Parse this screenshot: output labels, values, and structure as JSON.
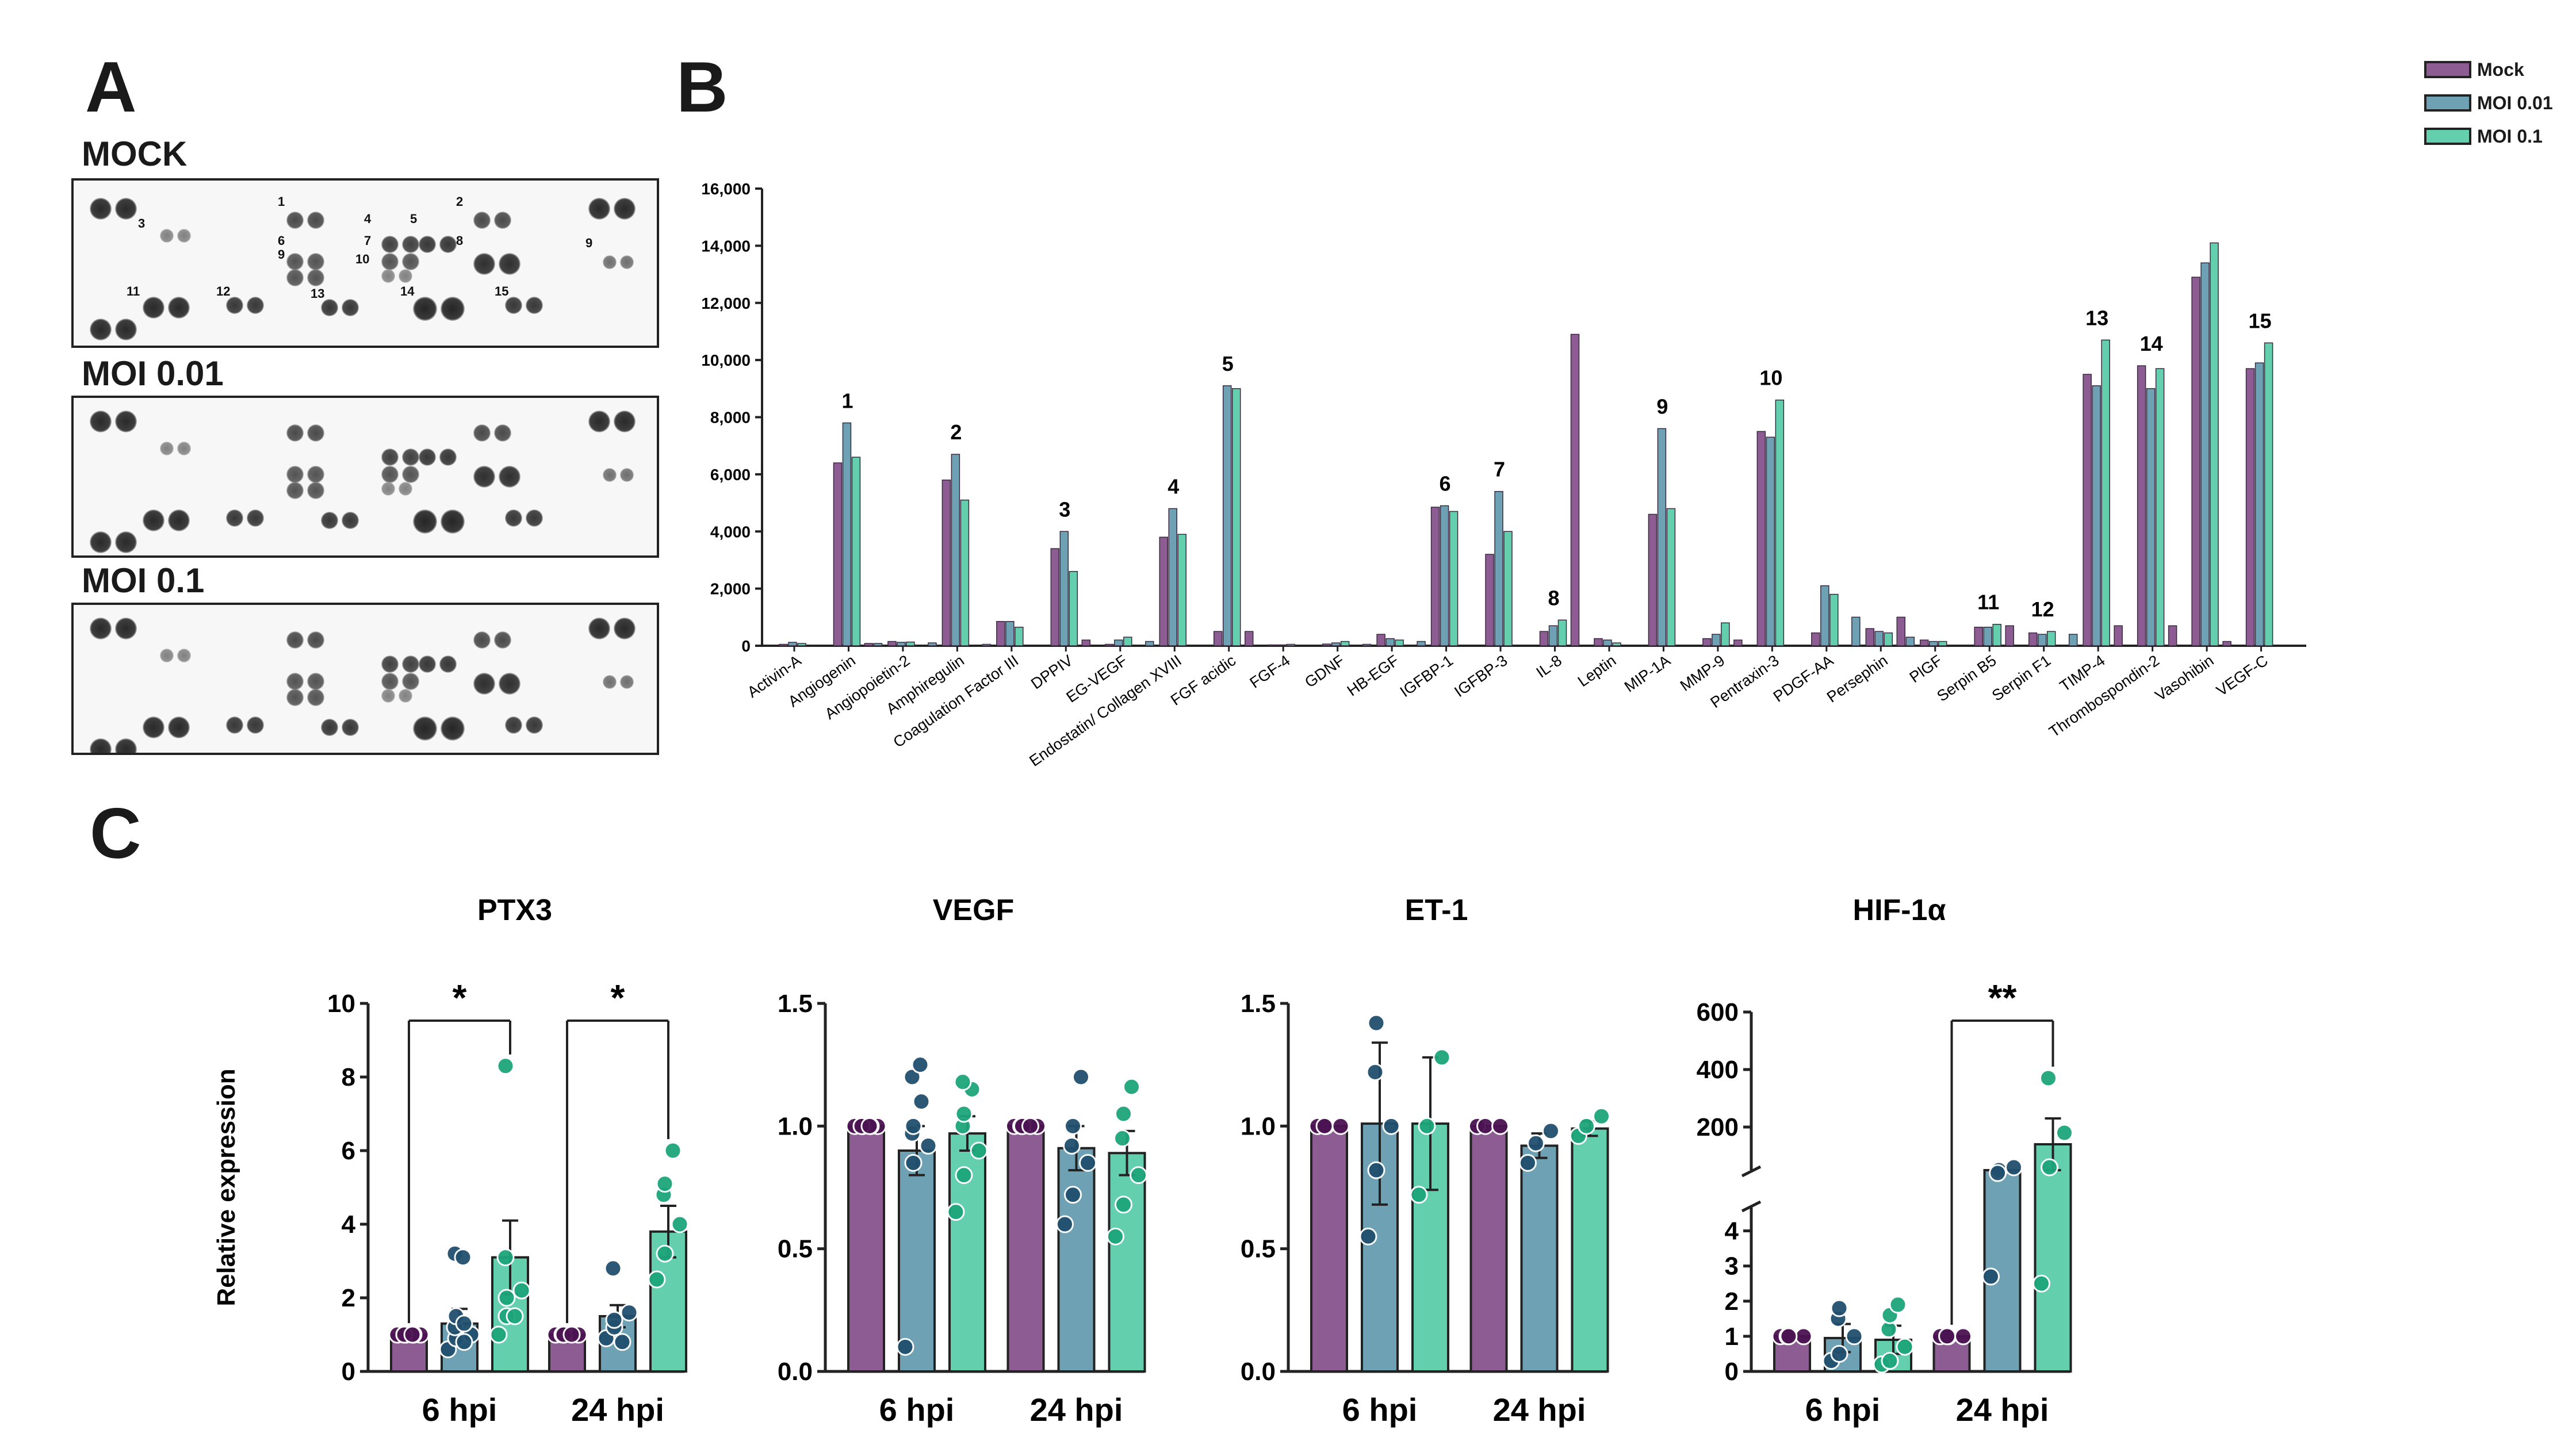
{
  "panels": {
    "A": "A",
    "B": "B",
    "C": "C"
  },
  "colors": {
    "mock": "#8c5c93",
    "moi001": "#6ea1b4",
    "moi01": "#63cfad",
    "dot_mock": "#4b1352",
    "dot_moi001": "#214f6e",
    "dot_moi01": "#1da57a"
  },
  "blots": [
    {
      "title": "MOCK",
      "labels": [
        "1",
        "2",
        "3",
        "4",
        "5",
        "6",
        "7",
        "8",
        "9",
        "10",
        "11",
        "12",
        "13",
        "14",
        "15",
        "9"
      ]
    },
    {
      "title": "MOI 0.01"
    },
    {
      "title": "MOI 0.1"
    }
  ],
  "chart_data": [
    {
      "type": "bar",
      "panel": "B",
      "categories": [
        "Activin-A",
        "Angiogenin",
        "Angiopoietin-2",
        "Amphiregulin",
        "Coagulation  Factor III",
        "DPPIV",
        "EG-VEGF",
        "Endostatin/ Collagen XVIII",
        "FGF acidic",
        "FGF-4",
        "GDNF",
        "HB-EGF",
        "IGFBP-1",
        "IGFBP-3",
        "IL-8",
        "Leptin",
        "MIP-1A",
        "MMP-9",
        "Pentraxin-3",
        "PDGF-AA",
        "Persephin",
        "PlGF",
        "Serpin B5",
        "Serpin F1",
        "TIMP-4",
        "Thrombospondin-2",
        "Vasohibin",
        "VEGF-C"
      ],
      "series": [
        {
          "name": "Mock",
          "values": [
            50,
            6400,
            150,
            5800,
            850,
            3400,
            50,
            3800,
            500,
            30,
            60,
            400,
            4850,
            3200,
            500,
            250,
            4600,
            250,
            7500,
            450,
            600,
            200,
            650,
            450,
            9500,
            9800,
            12900,
            9700
          ]
        },
        {
          "name": "MOI 0.01",
          "values": [
            120,
            7800,
            120,
            6700,
            850,
            4000,
            200,
            4800,
            9100,
            30,
            100,
            250,
            4900,
            5400,
            700,
            200,
            7600,
            400,
            7300,
            2100,
            500,
            150,
            650,
            400,
            9100,
            9000,
            13400,
            9900
          ]
        },
        {
          "name": "MOI 0.1",
          "values": [
            80,
            6600,
            130,
            5100,
            650,
            2600,
            300,
            3900,
            9000,
            50,
            150,
            200,
            4700,
            4000,
            900,
            100,
            4800,
            800,
            8600,
            1800,
            450,
            150,
            750,
            500,
            10700,
            9700,
            14100,
            10600
          ]
        }
      ],
      "bar_set_2": {
        "name": "",
        "values": [
          0,
          80,
          100,
          50,
          0,
          0,
          150,
          0,
          0,
          0,
          50,
          150,
          0,
          0,
          0,
          0,
          0,
          0,
          0,
          1000,
          300,
          0,
          0,
          400,
          0,
          0,
          0,
          0
        ]
      },
      "bar_set_3": {
        "name": "",
        "values": [
          0,
          80,
          0,
          0,
          0,
          200,
          0,
          0,
          500,
          0,
          0,
          0,
          0,
          0,
          10900,
          0,
          0,
          200,
          0,
          0,
          1000,
          0,
          700,
          0,
          700,
          700,
          150,
          0
        ]
      },
      "legend": [
        "Mock",
        "MOI 0.01",
        "MOI 0.1"
      ],
      "annotations": [
        {
          "label": "1",
          "cat": 1
        },
        {
          "label": "2",
          "cat": 3
        },
        {
          "label": "3",
          "cat": 5
        },
        {
          "label": "4",
          "cat": 7
        },
        {
          "label": "5",
          "cat": 8
        },
        {
          "label": "6",
          "cat": 12
        },
        {
          "label": "7",
          "cat": 13
        },
        {
          "label": "8",
          "cat": 14
        },
        {
          "label": "9",
          "cat": 16
        },
        {
          "label": "10",
          "cat": 18
        },
        {
          "label": "11",
          "cat": 22
        },
        {
          "label": "12",
          "cat": 23
        },
        {
          "label": "13",
          "cat": 24
        },
        {
          "label": "14",
          "cat": 25
        },
        {
          "label": "15",
          "cat": 27
        }
      ],
      "ylim": [
        0,
        16000
      ],
      "yticks": [
        "0",
        "2,000",
        "4,000",
        "6,000",
        "8,000",
        "10,000",
        "12,000",
        "14,000",
        "16,000"
      ]
    },
    {
      "type": "bar",
      "panel": "C",
      "title": "PTX3",
      "ylabel": "Relative expression",
      "categories": [
        "6 hpi",
        "24 hpi"
      ],
      "ylim": [
        0,
        10
      ],
      "yticks": [
        "0",
        "2",
        "4",
        "6",
        "8",
        "10"
      ],
      "series": [
        {
          "name": "Mock",
          "values": [
            1.0,
            1.0
          ],
          "err": [
            0,
            0
          ]
        },
        {
          "name": "MOI 0.01",
          "values": [
            1.3,
            1.5
          ],
          "err": [
            0.4,
            0.3
          ]
        },
        {
          "name": "MOI 0.1",
          "values": [
            3.1,
            3.8
          ],
          "err": [
            1.0,
            0.7
          ]
        }
      ],
      "points": [
        [
          [
            1,
            1,
            1,
            1,
            1,
            1,
            1,
            1
          ],
          [
            0.6,
            0.9,
            1.0,
            1.2,
            1.5,
            0.8,
            3.2,
            3.1,
            1.3
          ],
          [
            1.0,
            1.5,
            2.2,
            3.1,
            2.0,
            1.5,
            8.3
          ]
        ],
        [
          [
            1,
            1,
            1,
            1,
            1,
            1
          ],
          [
            0.9,
            1.2,
            1.6,
            2.8,
            1.4,
            0.8
          ],
          [
            2.5,
            3.2,
            4.0,
            4.8,
            5.1,
            6.0
          ]
        ]
      ],
      "significance": [
        {
          "text": "*",
          "groups": [
            0
          ]
        },
        {
          "text": "*",
          "groups": [
            1
          ]
        }
      ]
    },
    {
      "type": "bar",
      "panel": "C",
      "title": "VEGF",
      "categories": [
        "6 hpi",
        "24 hpi"
      ],
      "ylim": [
        0,
        1.5
      ],
      "yticks": [
        "0.0",
        "0.5",
        "1.0",
        "1.5"
      ],
      "series": [
        {
          "name": "Mock",
          "values": [
            1.0,
            1.0
          ],
          "err": [
            0,
            0
          ]
        },
        {
          "name": "MOI 0.01",
          "values": [
            0.9,
            0.91
          ],
          "err": [
            0.1,
            0.09
          ]
        },
        {
          "name": "MOI 0.1",
          "values": [
            0.97,
            0.89
          ],
          "err": [
            0.07,
            0.09
          ]
        }
      ],
      "points": [
        [
          [
            1,
            1,
            1,
            1,
            1,
            1,
            1,
            1
          ],
          [
            0.1,
            0.85,
            0.92,
            0.97,
            1.0,
            1.1,
            1.2,
            1.25
          ],
          [
            0.65,
            0.8,
            0.9,
            1.0,
            1.05,
            1.15,
            1.18
          ]
        ],
        [
          [
            1,
            1,
            1,
            1,
            1,
            1
          ],
          [
            0.6,
            0.72,
            0.85,
            0.92,
            1.0,
            1.2
          ],
          [
            0.55,
            0.68,
            0.8,
            0.95,
            1.05,
            1.16
          ]
        ]
      ]
    },
    {
      "type": "bar",
      "panel": "C",
      "title": "ET-1",
      "categories": [
        "6 hpi",
        "24 hpi"
      ],
      "ylim": [
        0,
        1.5
      ],
      "yticks": [
        "0.0",
        "0.5",
        "1.0",
        "1.5"
      ],
      "series": [
        {
          "name": "Mock",
          "values": [
            1.0,
            1.0
          ],
          "err": [
            0,
            0
          ]
        },
        {
          "name": "MOI 0.01",
          "values": [
            1.01,
            0.92
          ],
          "err": [
            0.33,
            0.05
          ]
        },
        {
          "name": "MOI 0.1",
          "values": [
            1.01,
            0.99
          ],
          "err": [
            0.27,
            0.03
          ]
        }
      ],
      "points": [
        [
          [
            1,
            1,
            1,
            1
          ],
          [
            0.55,
            0.82,
            1.0,
            1.22,
            1.42
          ],
          [
            0.72,
            1.0,
            1.28
          ]
        ],
        [
          [
            1,
            1,
            1
          ],
          [
            0.85,
            0.93,
            0.98
          ],
          [
            0.96,
            1.0,
            1.04
          ]
        ]
      ]
    },
    {
      "type": "bar",
      "panel": "C",
      "title": "HIF-1α",
      "categories": [
        "6 hpi",
        "24 hpi"
      ],
      "axis_break": true,
      "yticks_lower": [
        "0",
        "1",
        "2",
        "3",
        "4"
      ],
      "yticks_upper": [
        "200",
        "400",
        "600"
      ],
      "series": [
        {
          "name": "Mock",
          "values": [
            1.0,
            1.0
          ],
          "err": [
            0,
            0
          ]
        },
        {
          "name": "MOI 0.01",
          "values": [
            0.95,
            50
          ],
          "err": [
            0.4,
            0
          ]
        },
        {
          "name": "MOI 0.1",
          "values": [
            0.9,
            140
          ],
          "err": [
            0.4,
            90
          ]
        }
      ],
      "points": [
        [
          [
            1,
            1,
            1,
            1,
            1
          ],
          [
            0.3,
            0.5,
            1.0,
            1.5,
            1.8
          ],
          [
            0.2,
            0.3,
            0.7,
            1.2,
            1.6,
            1.9
          ]
        ],
        [
          [
            1,
            1,
            1,
            1
          ],
          [
            2.7,
            50,
            60,
            40
          ],
          [
            2.5,
            60,
            180,
            370
          ]
        ]
      ],
      "significance": [
        {
          "text": "**",
          "groups": [
            1
          ]
        }
      ]
    }
  ]
}
